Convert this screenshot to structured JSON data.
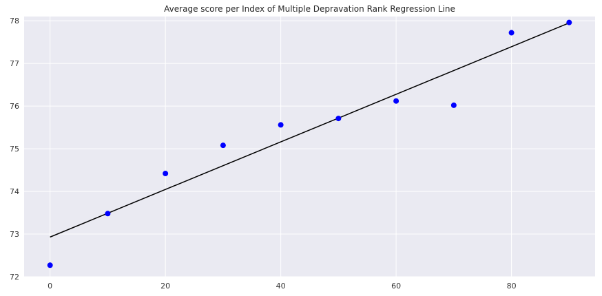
{
  "chart_data": {
    "type": "scatter",
    "title": "Average score per Index of Multiple Depravation Rank Regression Line",
    "xlabel": "",
    "ylabel": "",
    "xlim": [
      -4.5,
      94.5
    ],
    "ylim": [
      72,
      78.1
    ],
    "x_ticks": [
      0,
      20,
      40,
      60,
      80
    ],
    "y_ticks": [
      72,
      73,
      74,
      75,
      76,
      77,
      78
    ],
    "grid": true,
    "series": [
      {
        "type": "scatter",
        "color": "#0000ff",
        "points": [
          {
            "x": 0,
            "y": 72.27
          },
          {
            "x": 10,
            "y": 73.48
          },
          {
            "x": 20,
            "y": 74.42
          },
          {
            "x": 30,
            "y": 75.08
          },
          {
            "x": 40,
            "y": 75.56
          },
          {
            "x": 50,
            "y": 75.71
          },
          {
            "x": 60,
            "y": 76.12
          },
          {
            "x": 70,
            "y": 76.02
          },
          {
            "x": 80,
            "y": 77.72
          },
          {
            "x": 90,
            "y": 77.96
          }
        ]
      },
      {
        "type": "line",
        "color": "#000000",
        "points": [
          {
            "x": 0,
            "y": 72.93
          },
          {
            "x": 90,
            "y": 77.95
          }
        ]
      }
    ]
  }
}
